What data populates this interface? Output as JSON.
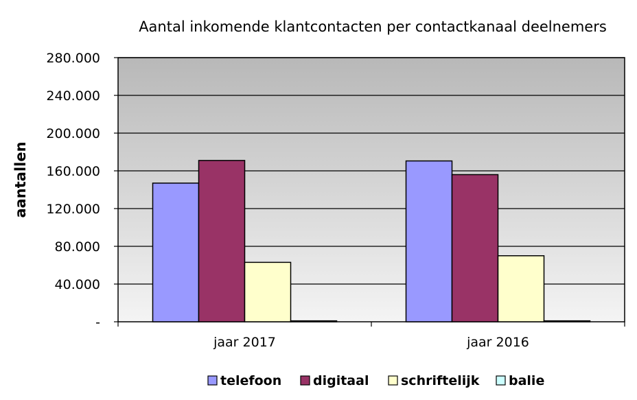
{
  "chart_data": {
    "type": "bar",
    "title": "Aantal inkomende klantcontacten per contactkanaal deelnemers",
    "xlabel": "",
    "ylabel": "aantallen",
    "categories": [
      "jaar 2017",
      "jaar 2016"
    ],
    "series": [
      {
        "name": "telefoon",
        "values": [
          147000,
          170500
        ],
        "color": "#9999ff"
      },
      {
        "name": "digitaal",
        "values": [
          171000,
          156000
        ],
        "color": "#993366"
      },
      {
        "name": "schriftelijk",
        "values": [
          63000,
          70000
        ],
        "color": "#ffffcc"
      },
      {
        "name": "balie",
        "values": [
          1000,
          1000
        ],
        "color": "#ccffff"
      }
    ],
    "ylim": [
      0,
      280000
    ],
    "yticks": [
      0,
      40000,
      80000,
      120000,
      160000,
      200000,
      240000,
      280000
    ],
    "ytick_labels": [
      "-",
      "40.000",
      "80.000",
      "120.000",
      "160.000",
      "200.000",
      "240.000",
      "280.000"
    ],
    "grid": true,
    "legend_position": "bottom",
    "plot_background": "gradient grey"
  }
}
